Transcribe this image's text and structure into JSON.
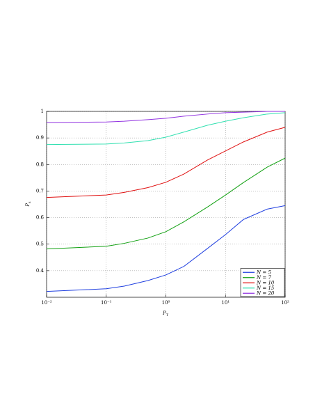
{
  "chart_data": {
    "type": "line",
    "xlabel": {
      "text": "P",
      "subscript": "T"
    },
    "ylabel": {
      "text": "P",
      "subscript": "s"
    },
    "x": [
      0.01,
      0.1,
      0.2,
      0.5,
      1,
      2,
      5,
      10,
      20,
      50,
      100
    ],
    "series": [
      {
        "name": "N = 5",
        "color": "#1f3fe0",
        "values": [
          0.322,
          0.332,
          0.342,
          0.363,
          0.384,
          0.416,
          0.484,
          0.536,
          0.593,
          0.632,
          0.645
        ]
      },
      {
        "name": "N = 7",
        "color": "#10a010",
        "values": [
          0.482,
          0.492,
          0.503,
          0.523,
          0.547,
          0.584,
          0.64,
          0.685,
          0.732,
          0.79,
          0.824
        ]
      },
      {
        "name": "N = 10",
        "color": "#e01010",
        "values": [
          0.676,
          0.685,
          0.695,
          0.713,
          0.733,
          0.764,
          0.817,
          0.851,
          0.885,
          0.922,
          0.94
        ]
      },
      {
        "name": "N = 15",
        "color": "#30e0b0",
        "values": [
          0.875,
          0.877,
          0.881,
          0.89,
          0.903,
          0.922,
          0.948,
          0.963,
          0.976,
          0.99,
          0.995
        ]
      },
      {
        "name": "N = 20",
        "color": "#9030e0",
        "values": [
          0.958,
          0.96,
          0.963,
          0.969,
          0.974,
          0.982,
          0.99,
          0.995,
          0.997,
          1.0,
          1.0
        ]
      }
    ],
    "xscale": "log",
    "xlim": [
      0.01,
      100
    ],
    "xticks": [
      {
        "value": 0.01,
        "label": "10⁻²"
      },
      {
        "value": 0.1,
        "label": "10⁻¹"
      },
      {
        "value": 1,
        "label": "10⁰"
      },
      {
        "value": 10,
        "label": "10¹"
      },
      {
        "value": 100,
        "label": "10²"
      }
    ],
    "ylim": [
      0.3,
      1
    ],
    "yticks": [
      0.4,
      0.5,
      0.6,
      0.7,
      0.8,
      0.9,
      1
    ],
    "grid": true,
    "legend": "lower right"
  }
}
